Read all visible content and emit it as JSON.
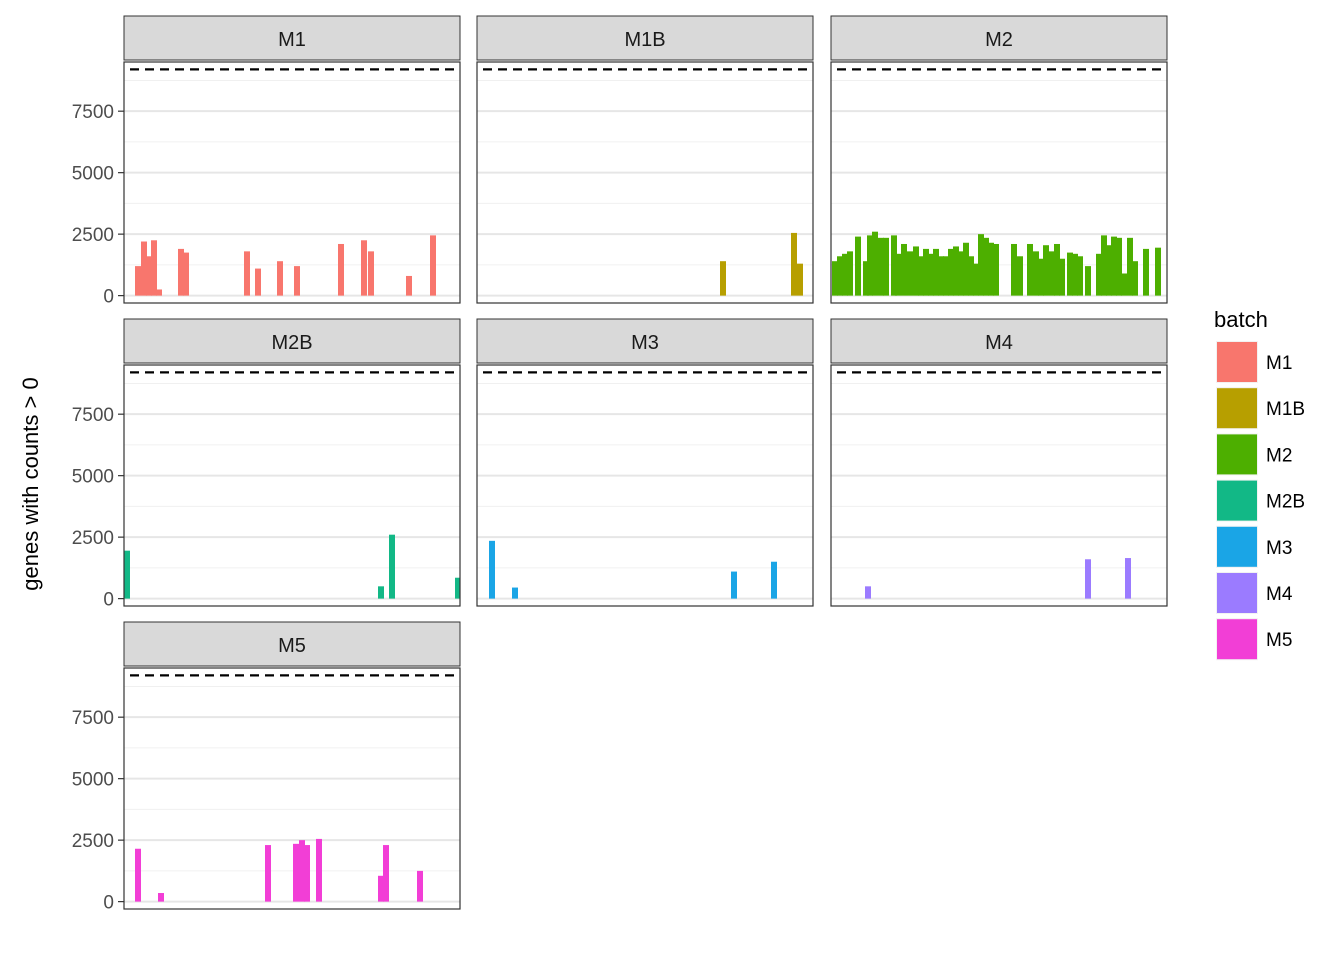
{
  "chart_data": {
    "type": "bar",
    "ylabel": "genes with counts > 0",
    "ylim": [
      -300,
      9500
    ],
    "yticks": [
      0,
      2500,
      5000,
      7500
    ],
    "ytick_labels": [
      "0",
      "2500",
      "5000",
      "7500"
    ],
    "reference_line": {
      "y": 9200,
      "style": "dashed"
    },
    "grid": true,
    "legend": {
      "title": "batch",
      "placement": "right",
      "entries": [
        {
          "label": "M1",
          "color": "#F8766D"
        },
        {
          "label": "M1B",
          "color": "#B79F00"
        },
        {
          "label": "M2",
          "color": "#4DAF00"
        },
        {
          "label": "M2B",
          "color": "#12B886"
        },
        {
          "label": "M3",
          "color": "#1AA5E6"
        },
        {
          "label": "M4",
          "color": "#9B7BFF"
        },
        {
          "label": "M5",
          "color": "#F23ED6"
        }
      ]
    },
    "panels": [
      {
        "title": "M1",
        "color": "#F8766D",
        "bars": [
          [
            11,
            1200
          ],
          [
            17,
            2200
          ],
          [
            22,
            1600
          ],
          [
            27,
            2250
          ],
          [
            32,
            250
          ],
          [
            54,
            1900
          ],
          [
            59,
            1750
          ],
          [
            120,
            1800
          ],
          [
            131,
            1100
          ],
          [
            153,
            1400
          ],
          [
            170,
            1200
          ],
          [
            214,
            2100
          ],
          [
            237,
            2250
          ],
          [
            244,
            1800
          ],
          [
            282,
            800
          ],
          [
            306,
            2450
          ]
        ]
      },
      {
        "title": "M1B",
        "color": "#B79F00",
        "bars": [
          [
            243,
            1400
          ],
          [
            314,
            2550
          ],
          [
            320,
            1300
          ]
        ]
      },
      {
        "title": "M2",
        "color": "#4DAF00",
        "bars": [
          [
            1,
            1400
          ],
          [
            6,
            1600
          ],
          [
            11,
            1700
          ],
          [
            16,
            1800
          ],
          [
            24,
            2400
          ],
          [
            32,
            1400
          ],
          [
            36,
            2450
          ],
          [
            41,
            2600
          ],
          [
            47,
            2350
          ],
          [
            52,
            2350
          ],
          [
            60,
            2450
          ],
          [
            64,
            1700
          ],
          [
            70,
            2100
          ],
          [
            76,
            1800
          ],
          [
            82,
            2000
          ],
          [
            87,
            1600
          ],
          [
            92,
            1900
          ],
          [
            97,
            1700
          ],
          [
            102,
            1900
          ],
          [
            107,
            1600
          ],
          [
            112,
            1600
          ],
          [
            117,
            1900
          ],
          [
            122,
            2000
          ],
          [
            127,
            1800
          ],
          [
            132,
            2150
          ],
          [
            137,
            1600
          ],
          [
            142,
            1300
          ],
          [
            147,
            2500
          ],
          [
            152,
            2350
          ],
          [
            157,
            2150
          ],
          [
            162,
            2100
          ],
          [
            180,
            2100
          ],
          [
            186,
            1600
          ],
          [
            196,
            2100
          ],
          [
            202,
            1800
          ],
          [
            207,
            1500
          ],
          [
            212,
            2050
          ],
          [
            218,
            1800
          ],
          [
            223,
            2100
          ],
          [
            228,
            1500
          ],
          [
            236,
            1750
          ],
          [
            241,
            1700
          ],
          [
            246,
            1600
          ],
          [
            254,
            1200
          ],
          [
            265,
            1700
          ],
          [
            270,
            2450
          ],
          [
            275,
            2050
          ],
          [
            280,
            2400
          ],
          [
            285,
            2350
          ],
          [
            290,
            900
          ],
          [
            296,
            2350
          ],
          [
            301,
            1400
          ],
          [
            312,
            1900
          ],
          [
            324,
            1950
          ]
        ]
      },
      {
        "title": "M2B",
        "color": "#12B886",
        "bars": [
          [
            0,
            1950
          ],
          [
            254,
            500
          ],
          [
            265,
            2600
          ],
          [
            331,
            850
          ]
        ]
      },
      {
        "title": "M3",
        "color": "#1AA5E6",
        "bars": [
          [
            12,
            2350
          ],
          [
            35,
            450
          ],
          [
            254,
            1100
          ],
          [
            294,
            1500
          ]
        ]
      },
      {
        "title": "M4",
        "color": "#9B7BFF",
        "bars": [
          [
            34,
            500
          ],
          [
            254,
            1600
          ],
          [
            294,
            1650
          ]
        ]
      },
      {
        "title": "M5",
        "color": "#F23ED6",
        "bars": [
          [
            11,
            2150
          ],
          [
            34,
            350
          ],
          [
            141,
            2300
          ],
          [
            169,
            2350
          ],
          [
            175,
            2500
          ],
          [
            180,
            2300
          ],
          [
            192,
            2550
          ],
          [
            254,
            1050
          ],
          [
            259,
            2300
          ],
          [
            293,
            1250
          ]
        ]
      }
    ]
  }
}
